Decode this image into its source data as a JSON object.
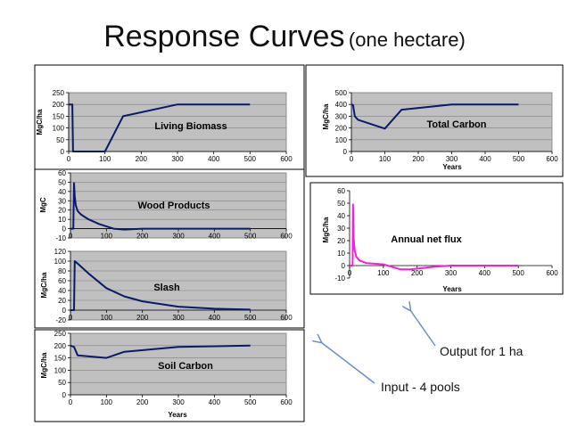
{
  "slide": {
    "title": "Response Curves",
    "subtitle": "(one hectare)"
  },
  "colors": {
    "series_navy": "#0a1a6b",
    "series_magenta": "#ff1ad9",
    "grid": "#808080",
    "plot_bg": "#c0c0c0",
    "arrow": "#6b8fc4"
  },
  "annotations": {
    "output_label": "Output for 1 ha",
    "input_label": "Input  - 4 pools"
  },
  "chart_data": [
    {
      "id": "living-biomass",
      "type": "line",
      "title": "Living Biomass",
      "xlabel": "",
      "ylabel": "MgC/ha",
      "xlim": [
        0,
        600
      ],
      "ylim": [
        0,
        250
      ],
      "xticks": [
        0,
        100,
        200,
        300,
        400,
        500,
        600
      ],
      "yticks": [
        0,
        50,
        100,
        150,
        200,
        250
      ],
      "grid": true,
      "series": [
        {
          "name": "Living Biomass",
          "color": "#0a1a6b",
          "x": [
            0,
            10,
            12,
            100,
            150,
            300,
            500
          ],
          "y": [
            200,
            200,
            0,
            0,
            150,
            200,
            200
          ]
        }
      ]
    },
    {
      "id": "total-carbon",
      "type": "line",
      "title": "Total Carbon",
      "xlabel": "Years",
      "ylabel": "MgC/ha",
      "xlim": [
        0,
        600
      ],
      "ylim": [
        0,
        500
      ],
      "xticks": [
        0,
        100,
        200,
        300,
        400,
        500,
        600
      ],
      "yticks": [
        0,
        100,
        200,
        300,
        400,
        500
      ],
      "grid": true,
      "series": [
        {
          "name": "Total Carbon",
          "color": "#0a1a6b",
          "x": [
            0,
            5,
            10,
            20,
            100,
            150,
            300,
            500
          ],
          "y": [
            400,
            395,
            300,
            270,
            195,
            355,
            400,
            400
          ]
        }
      ]
    },
    {
      "id": "wood-products",
      "type": "line",
      "title": "Wood Products",
      "xlabel": "",
      "ylabel": "MgC",
      "xlim": [
        0,
        600
      ],
      "ylim": [
        -10,
        60
      ],
      "xticks": [
        0,
        100,
        200,
        300,
        400,
        500,
        600
      ],
      "yticks": [
        -10,
        0,
        10,
        20,
        30,
        40,
        50,
        60
      ],
      "grid": true,
      "series": [
        {
          "name": "Wood Products",
          "color": "#0a1a6b",
          "x": [
            0,
            8,
            10,
            12,
            15,
            20,
            30,
            50,
            80,
            120,
            150,
            200,
            300,
            500
          ],
          "y": [
            0,
            0,
            49,
            35,
            25,
            19,
            15,
            10,
            5,
            0,
            -1,
            0,
            0,
            0
          ]
        }
      ]
    },
    {
      "id": "annual-net-flux",
      "type": "line",
      "title": "Annual net flux",
      "xlabel": "Years",
      "ylabel": "MgC/ha",
      "xlim": [
        0,
        600
      ],
      "ylim": [
        -10,
        60
      ],
      "xticks": [
        0,
        100,
        200,
        300,
        400,
        500,
        600
      ],
      "yticks": [
        -10,
        0,
        10,
        20,
        30,
        40,
        50,
        60
      ],
      "grid": false,
      "series": [
        {
          "name": "Annual net flux",
          "color": "#ff1ad9",
          "x": [
            0,
            9,
            10,
            12,
            15,
            20,
            30,
            50,
            100,
            150,
            180,
            250,
            300,
            400,
            500
          ],
          "y": [
            0,
            0,
            49,
            22,
            12,
            7,
            4,
            2,
            1,
            -3,
            -3,
            -1,
            0,
            0,
            0
          ]
        }
      ]
    },
    {
      "id": "slash",
      "type": "line",
      "title": "Slash",
      "xlabel": "",
      "ylabel": "MgC/ha",
      "xlim": [
        0,
        600
      ],
      "ylim": [
        -20,
        120
      ],
      "xticks": [
        0,
        100,
        200,
        300,
        400,
        500,
        600
      ],
      "yticks": [
        -20,
        0,
        20,
        40,
        60,
        80,
        100,
        120
      ],
      "grid": true,
      "series": [
        {
          "name": "Slash",
          "color": "#0a1a6b",
          "x": [
            0,
            10,
            12,
            20,
            50,
            100,
            150,
            200,
            300,
            400,
            500
          ],
          "y": [
            0,
            0,
            100,
            95,
            75,
            45,
            28,
            18,
            7,
            3,
            1
          ]
        }
      ]
    },
    {
      "id": "soil-carbon",
      "type": "line",
      "title": "Soil Carbon",
      "xlabel": "Years",
      "ylabel": "MgC/ha",
      "xlim": [
        0,
        600
      ],
      "ylim": [
        0,
        250
      ],
      "xticks": [
        0,
        100,
        200,
        300,
        400,
        500,
        600
      ],
      "yticks": [
        0,
        50,
        100,
        150,
        200,
        250
      ],
      "grid": true,
      "series": [
        {
          "name": "Soil Carbon",
          "color": "#0a1a6b",
          "x": [
            0,
            10,
            20,
            100,
            150,
            300,
            500
          ],
          "y": [
            200,
            195,
            160,
            150,
            175,
            195,
            200
          ]
        }
      ]
    }
  ]
}
